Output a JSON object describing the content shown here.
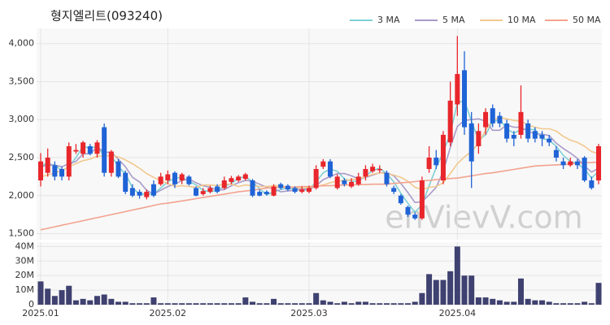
{
  "chart_data": [
    {
      "type": "candlestick",
      "title": "형지엘리트(093240)",
      "watermark": "enVievV.com",
      "up_color": "#e8262b",
      "down_color": "#1f63d6",
      "categories": [
        "2025.01",
        null,
        null,
        null,
        null,
        null,
        null,
        null,
        null,
        null,
        null,
        null,
        null,
        null,
        null,
        null,
        null,
        null,
        "2025.02",
        null,
        null,
        null,
        null,
        null,
        null,
        null,
        null,
        null,
        null,
        null,
        null,
        null,
        null,
        null,
        null,
        null,
        null,
        null,
        "2025.03",
        null,
        null,
        null,
        null,
        null,
        null,
        null,
        null,
        null,
        null,
        null,
        null,
        null,
        null,
        null,
        null,
        null,
        null,
        null,
        null,
        "2025.04",
        null,
        null,
        null,
        null,
        null,
        null,
        null,
        null,
        null,
        null,
        null,
        null,
        null,
        null,
        null,
        null,
        null,
        null,
        null,
        null
      ],
      "open": [
        2200,
        2300,
        2400,
        2350,
        2250,
        2580,
        2550,
        2650,
        2550,
        2900,
        2300,
        2450,
        2300,
        2100,
        2050,
        1980,
        2150,
        2150,
        2200,
        2300,
        2200,
        2250,
        2100,
        2020,
        2050,
        2120,
        2100,
        2180,
        2200,
        2220,
        2200,
        2050,
        2050,
        2000,
        2150,
        2130,
        2100,
        2050,
        2050,
        2100,
        2380,
        2450,
        2100,
        2200,
        2120,
        2150,
        2250,
        2320,
        2350,
        2300,
        2100,
        2000,
        1850,
        1750,
        1700,
        2350,
        2500,
        2200,
        2700,
        3200,
        3650,
        2950,
        2650,
        2900,
        3150,
        3050,
        2950,
        2800,
        2800,
        2950,
        2850,
        2800,
        2750,
        2600,
        2450,
        2400,
        2450,
        2500,
        2200,
        2200
      ],
      "high": [
        2560,
        2620,
        2450,
        2380,
        2700,
        2680,
        2720,
        2680,
        2730,
        2950,
        2600,
        2480,
        2330,
        2150,
        2080,
        2080,
        2200,
        2300,
        2330,
        2320,
        2300,
        2270,
        2120,
        2100,
        2130,
        2150,
        2250,
        2260,
        2270,
        2300,
        2220,
        2080,
        2070,
        2150,
        2170,
        2150,
        2120,
        2120,
        2130,
        2400,
        2480,
        2480,
        2280,
        2230,
        2230,
        2300,
        2400,
        2420,
        2400,
        2330,
        2130,
        2020,
        1870,
        1780,
        2250,
        2650,
        2600,
        2850,
        3500,
        4100,
        3900,
        3100,
        2950,
        3150,
        3200,
        3100,
        3000,
        2850,
        3450,
        3000,
        2900,
        2850,
        2800,
        2650,
        2500,
        2500,
        2480,
        2520,
        2250,
        2680
      ],
      "low": [
        2120,
        2250,
        2200,
        2200,
        2200,
        2550,
        2500,
        2530,
        2500,
        2250,
        2250,
        2230,
        2020,
        1980,
        1960,
        1950,
        1980,
        2130,
        2150,
        2100,
        2150,
        2130,
        1990,
        2000,
        2030,
        2030,
        2080,
        2150,
        2180,
        2200,
        1980,
        1990,
        2000,
        1990,
        2080,
        2060,
        2030,
        2030,
        2030,
        2080,
        2350,
        2230,
        2080,
        2120,
        2100,
        2130,
        2200,
        2300,
        2300,
        2120,
        2020,
        1880,
        1720,
        1680,
        1680,
        2300,
        2350,
        2150,
        2650,
        3050,
        2800,
        2100,
        2550,
        2800,
        2900,
        2900,
        2700,
        2650,
        2750,
        2700,
        2700,
        2650,
        2650,
        2450,
        2350,
        2380,
        2350,
        2180,
        2080,
        2150
      ],
      "close": [
        2450,
        2500,
        2250,
        2250,
        2650,
        2600,
        2700,
        2550,
        2700,
        2300,
        2580,
        2250,
        2050,
        2000,
        2000,
        2050,
        2000,
        2250,
        2280,
        2150,
        2280,
        2150,
        2000,
        2060,
        2100,
        2050,
        2200,
        2230,
        2250,
        2280,
        2000,
        2000,
        2020,
        2120,
        2100,
        2080,
        2050,
        2080,
        2100,
        2350,
        2450,
        2250,
        2250,
        2150,
        2180,
        2250,
        2350,
        2380,
        2350,
        2150,
        2050,
        1900,
        1750,
        1700,
        2200,
        2500,
        2400,
        2800,
        3250,
        3600,
        2900,
        2450,
        2850,
        3100,
        2950,
        2950,
        2750,
        2750,
        3100,
        2750,
        2750,
        2750,
        2700,
        2500,
        2400,
        2450,
        2400,
        2200,
        2100,
        2650
      ],
      "series": [
        {
          "name": "3 MA",
          "color": "#7fd0d4",
          "values": [
            2400,
            2420,
            2400,
            2330,
            2380,
            2500,
            2650,
            2620,
            2650,
            2520,
            2530,
            2380,
            2290,
            2100,
            2020,
            2020,
            2020,
            2100,
            2180,
            2230,
            2240,
            2190,
            2140,
            2070,
            2050,
            2070,
            2120,
            2160,
            2230,
            2250,
            2180,
            2090,
            2010,
            2050,
            2080,
            2100,
            2080,
            2070,
            2080,
            2180,
            2300,
            2350,
            2320,
            2220,
            2190,
            2190,
            2260,
            2330,
            2360,
            2290,
            2180,
            2030,
            1900,
            1780,
            1880,
            2130,
            2370,
            2570,
            2820,
            3220,
            3250,
            2980,
            2730,
            2800,
            2970,
            3000,
            2880,
            2820,
            2870,
            2870,
            2870,
            2750,
            2730,
            2650,
            2530,
            2450,
            2420,
            2350,
            2230,
            2320
          ]
        },
        {
          "name": "5 MA",
          "color": "#a99bc9",
          "values": [
            2380,
            2400,
            2400,
            2380,
            2420,
            2450,
            2550,
            2550,
            2640,
            2570,
            2570,
            2480,
            2380,
            2240,
            2180,
            2070,
            2020,
            2070,
            2120,
            2150,
            2200,
            2220,
            2170,
            2130,
            2110,
            2070,
            2080,
            2130,
            2170,
            2200,
            2190,
            2150,
            2110,
            2090,
            2050,
            2060,
            2070,
            2090,
            2080,
            2130,
            2210,
            2250,
            2290,
            2290,
            2260,
            2220,
            2240,
            2270,
            2300,
            2300,
            2260,
            2160,
            2040,
            1910,
            1920,
            2010,
            2110,
            2320,
            2630,
            2910,
            2990,
            3000,
            3010,
            2980,
            2860,
            2860,
            2930,
            2900,
            2900,
            2850,
            2810,
            2810,
            2790,
            2690,
            2620,
            2560,
            2490,
            2390,
            2310,
            2360
          ]
        },
        {
          "name": "10 MA",
          "color": "#f2c88e",
          "values": [
            2250,
            2270,
            2300,
            2330,
            2380,
            2420,
            2460,
            2480,
            2520,
            2520,
            2530,
            2510,
            2470,
            2420,
            2360,
            2290,
            2240,
            2200,
            2160,
            2120,
            2130,
            2120,
            2110,
            2140,
            2140,
            2130,
            2150,
            2150,
            2120,
            2140,
            2130,
            2120,
            2120,
            2130,
            2130,
            2110,
            2100,
            2100,
            2110,
            2120,
            2140,
            2170,
            2190,
            2200,
            2210,
            2220,
            2250,
            2280,
            2300,
            2290,
            2270,
            2240,
            2190,
            2110,
            2080,
            2110,
            2120,
            2170,
            2290,
            2420,
            2510,
            2580,
            2690,
            2860,
            2990,
            3030,
            3010,
            2990,
            2980,
            2930,
            2900,
            2880,
            2880,
            2850,
            2780,
            2730,
            2700,
            2650,
            2580,
            2550
          ]
        },
        {
          "name": "50 MA",
          "color": "#f3a38f",
          "values": [
            1550,
            1570,
            1590,
            1610,
            1630,
            1650,
            1670,
            1690,
            1710,
            1730,
            1750,
            1770,
            1790,
            1810,
            1830,
            1850,
            1870,
            1890,
            1900,
            1915,
            1930,
            1945,
            1960,
            1975,
            1990,
            2005,
            2020,
            2035,
            2050,
            2060,
            2070,
            2085,
            2100,
            2105,
            2110,
            2110,
            2115,
            2120,
            2120,
            2125,
            2130,
            2130,
            2135,
            2140,
            2140,
            2145,
            2145,
            2150,
            2150,
            2150,
            2160,
            2170,
            2175,
            2185,
            2195,
            2200,
            2210,
            2215,
            2225,
            2230,
            2245,
            2260,
            2275,
            2290,
            2300,
            2315,
            2330,
            2345,
            2360,
            2375,
            2390,
            2395,
            2400,
            2405,
            2410,
            2420,
            2425,
            2430,
            2435,
            2440
          ]
        }
      ],
      "ylim": [
        1420,
        4200
      ],
      "yticks": [
        {
          "value": 1500,
          "label": "1,500"
        },
        {
          "value": 2000,
          "label": "2,000"
        },
        {
          "value": 2500,
          "label": "2,500"
        },
        {
          "value": 3000,
          "label": "3,000"
        },
        {
          "value": 3500,
          "label": "3,500"
        },
        {
          "value": 4000,
          "label": "4,000"
        }
      ],
      "grid": true
    },
    {
      "type": "bar",
      "color": "#3f4170",
      "values": [
        16000000,
        11000000,
        6000000,
        10000000,
        13000000,
        3000000,
        4000000,
        3000000,
        6000000,
        7000000,
        4000000,
        2000000,
        2000000,
        1000000,
        1000000,
        1000000,
        5000000,
        1000000,
        1000000,
        1000000,
        1000000,
        1000000,
        1000000,
        1000000,
        1000000,
        1000000,
        1000000,
        1000000,
        1000000,
        5000000,
        2000000,
        1000000,
        1000000,
        4000000,
        1000000,
        1000000,
        1000000,
        1000000,
        1000000,
        8000000,
        3000000,
        2000000,
        1000000,
        2000000,
        1000000,
        2000000,
        2000000,
        1000000,
        1000000,
        1000000,
        1000000,
        1000000,
        1000000,
        2000000,
        8000000,
        21000000,
        17000000,
        17000000,
        23000000,
        40000000,
        20000000,
        20000000,
        5000000,
        5000000,
        4000000,
        3000000,
        2000000,
        2000000,
        18000000,
        4000000,
        3000000,
        3000000,
        2000000,
        1000000,
        1000000,
        1000000,
        1000000,
        2000000,
        1000000,
        15000000
      ],
      "ylim": [
        0,
        43000000
      ],
      "yticks": [
        0,
        {
          "value": 10000000,
          "label": "10M"
        },
        {
          "value": 20000000,
          "label": "20M"
        },
        {
          "value": 30000000,
          "label": "30M"
        },
        {
          "value": 40000000,
          "label": "40M"
        }
      ]
    }
  ]
}
